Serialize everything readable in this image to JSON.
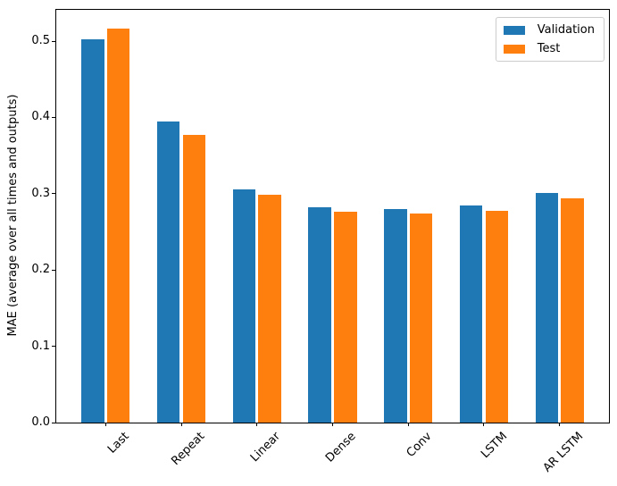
{
  "chart_data": {
    "type": "bar",
    "title": "",
    "xlabel": "",
    "ylabel": "MAE (average over all times and outputs)",
    "categories": [
      "Last",
      "Repeat",
      "Linear",
      "Dense",
      "Conv",
      "LSTM",
      "AR LSTM"
    ],
    "series": [
      {
        "name": "Validation",
        "color": "#1f77b4",
        "values": [
          0.502,
          0.395,
          0.306,
          0.282,
          0.28,
          0.285,
          0.301
        ]
      },
      {
        "name": "Test",
        "color": "#ff7f0e",
        "values": [
          0.516,
          0.377,
          0.299,
          0.276,
          0.274,
          0.278,
          0.294
        ]
      }
    ],
    "bar_width": 0.3,
    "bar_offsets": [
      -0.17,
      0.17
    ],
    "x_margin": 0.652,
    "ylim": [
      0,
      0.541
    ],
    "yticks": [
      0.0,
      0.1,
      0.2,
      0.3,
      0.4,
      0.5
    ],
    "ytick_labels": [
      "0.0",
      "0.1",
      "0.2",
      "0.3",
      "0.4",
      "0.5"
    ],
    "xtick_rotation_deg": 45,
    "grid": false,
    "legend_position": "upper right",
    "axis_color": "#000000",
    "legend_border_color": "#cccccc",
    "background_color": "#ffffff"
  }
}
